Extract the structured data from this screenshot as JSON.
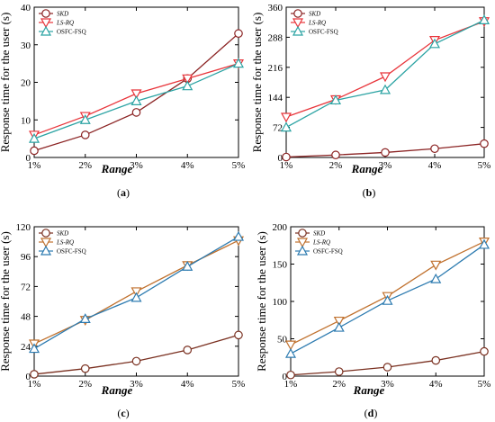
{
  "chart_data": [
    {
      "type": "line",
      "panel_label": "(a)",
      "categories": [
        "1%",
        "2%",
        "3%",
        "4%",
        "5%"
      ],
      "ylabel": "Response time for the user (s)",
      "xlabel": "Range",
      "ylim": [
        0,
        40
      ],
      "yticks": [
        0,
        10,
        20,
        30,
        40
      ],
      "legend_position": "top-left",
      "series": [
        {
          "name": "SKD",
          "marker": "circle",
          "color": "#8B2323",
          "values": [
            1.8,
            6,
            12,
            21,
            33
          ]
        },
        {
          "name": "LS-RQ",
          "marker": "triangle-down",
          "color": "#E8343A",
          "values": [
            6,
            11,
            17,
            21,
            25
          ]
        },
        {
          "name": "OSFC-FSQ",
          "marker": "triangle-up",
          "color": "#2BA3A3",
          "values": [
            5,
            10,
            15,
            19,
            25
          ]
        }
      ]
    },
    {
      "type": "line",
      "panel_label": "(b)",
      "categories": [
        "1%",
        "2%",
        "3%",
        "4%",
        "5%"
      ],
      "ylabel": "Response time for the user (s)",
      "xlabel": "Range",
      "ylim": [
        0,
        360
      ],
      "yticks": [
        0,
        72,
        144,
        216,
        288,
        360
      ],
      "legend_position": "top-left",
      "series": [
        {
          "name": "SKD",
          "marker": "circle",
          "color": "#8B2323",
          "values": [
            1,
            6,
            12,
            21,
            33
          ]
        },
        {
          "name": "LS-RQ",
          "marker": "triangle-down",
          "color": "#E8343A",
          "values": [
            97,
            139,
            194,
            281,
            326
          ]
        },
        {
          "name": "OSFC-FSQ",
          "marker": "triangle-up",
          "color": "#2BA3A3",
          "values": [
            72,
            137,
            162,
            272,
            329
          ]
        }
      ]
    },
    {
      "type": "line",
      "panel_label": "(c)",
      "categories": [
        "1%",
        "2%",
        "3%",
        "4%",
        "5%"
      ],
      "ylabel": "Response time for the user (s)",
      "xlabel": "Range",
      "ylim": [
        0,
        120
      ],
      "yticks": [
        0,
        24,
        48,
        72,
        96,
        120
      ],
      "legend_position": "top-left",
      "series": [
        {
          "name": "SKD",
          "marker": "circle",
          "color": "#7A3020",
          "values": [
            1.5,
            6,
            12,
            21,
            33
          ]
        },
        {
          "name": "LS-RQ",
          "marker": "triangle-down",
          "color": "#C0712E",
          "values": [
            26,
            45,
            68,
            89,
            109
          ]
        },
        {
          "name": "OSFC-FSQ",
          "marker": "triangle-up",
          "color": "#2D7BB0",
          "values": [
            22,
            46,
            63,
            88,
            112
          ]
        }
      ]
    },
    {
      "type": "line",
      "panel_label": "(d)",
      "categories": [
        "1%",
        "2%",
        "3%",
        "4%",
        "5%"
      ],
      "ylabel": "Response time for the user (s)",
      "xlabel": "Range",
      "ylim": [
        0,
        200
      ],
      "yticks": [
        0,
        50,
        100,
        150,
        200
      ],
      "legend_position": "top-left",
      "series": [
        {
          "name": "SKD",
          "marker": "circle",
          "color": "#7A3020",
          "values": [
            1.5,
            6,
            12,
            21,
            33
          ]
        },
        {
          "name": "LS-RQ",
          "marker": "triangle-down",
          "color": "#C0712E",
          "values": [
            42,
            74,
            107,
            149,
            180
          ]
        },
        {
          "name": "OSFC-FSQ",
          "marker": "triangle-up",
          "color": "#2D7BB0",
          "values": [
            30,
            65,
            101,
            130,
            176
          ]
        }
      ]
    }
  ]
}
